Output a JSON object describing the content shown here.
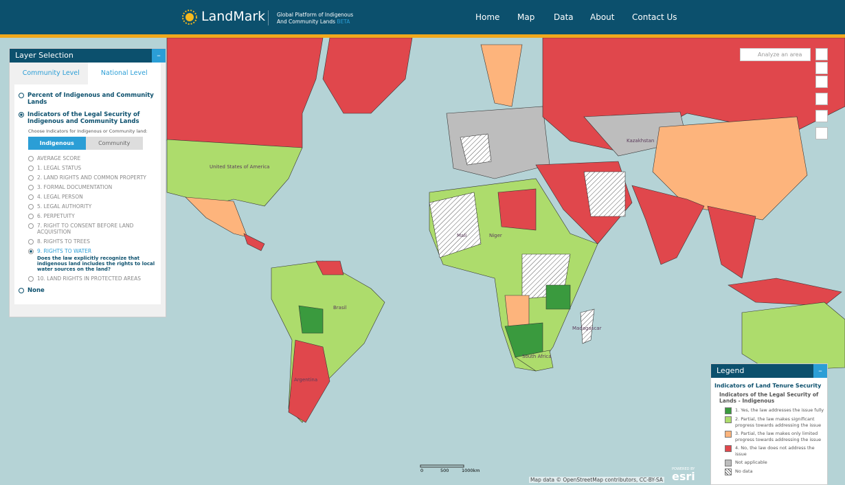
{
  "header": {
    "logo": "LandMark",
    "tagline_line1": "Global Platform of Indigenous",
    "tagline_line2": "And Community Lands",
    "badge": "BETA",
    "nav": [
      "Home",
      "Map",
      "Data",
      "About",
      "Contact Us"
    ]
  },
  "layer_panel": {
    "title": "Layer Selection",
    "tabs": [
      "Community Level",
      "National Level"
    ],
    "active_tab": 1,
    "options": [
      "Percent of Indigenous and Community Lands",
      "Indicators of the Legal Security of Indigenous and Community Lands"
    ],
    "selected_option": 1,
    "prompt": "Choose Indicators for Indigenous or Community land:",
    "toggle": [
      "Indigenous",
      "Community"
    ],
    "active_toggle": 0,
    "indicators": [
      "AVERAGE SCORE",
      "1. LEGAL STATUS",
      "2. LAND RIGHTS AND COMMON PROPERTY",
      "3. FORMAL DOCUMENTATION",
      "4. LEGAL PERSON",
      "5. LEGAL AUTHORITY",
      "6. PERPETUITY",
      "7. RIGHT TO CONSENT BEFORE LAND ACQUISITION",
      "8. RIGHTS TO TREES",
      "9. RIGHTS TO WATER",
      "10. LAND RIGHTS IN PROTECTED AREAS"
    ],
    "selected_indicator": 9,
    "indicator_description": "Does the law explicitly recognize that indigenous land includes the rights to local water sources on the land?",
    "none_option": "None"
  },
  "map": {
    "analyze": "Analyze an area",
    "labels": [
      "United States of America",
      "Brasil",
      "Argentina",
      "Niger",
      "Mali",
      "Madagascar",
      "South Africa",
      "Kazakhstan"
    ],
    "scale": [
      "0",
      "500",
      "1000km"
    ],
    "attribution": "Map data © OpenStreetMap contributors, CC-BY-SA",
    "esri_powered": "POWERED BY",
    "esri": "esri"
  },
  "legend": {
    "title": "Legend",
    "heading": "Indicators of Land Tenure Security",
    "subheading": "Indicators of the Legal Security of Lands - Indigenous",
    "items": [
      {
        "label": "1. Yes, the law addresses the issue fully",
        "color": "#3a9a3e"
      },
      {
        "label": "2. Partial, the law makes significant progress towards addressing the issue",
        "color": "#addc6c"
      },
      {
        "label": "3. Partial, the law makes only limited progress towards addressing the issue",
        "color": "#fdb47c"
      },
      {
        "label": "4. No, the law does not address the issue",
        "color": "#e0474c"
      },
      {
        "label": "Not applicable",
        "color": "#bdbdbd"
      },
      {
        "label": "No data"
      }
    ]
  }
}
